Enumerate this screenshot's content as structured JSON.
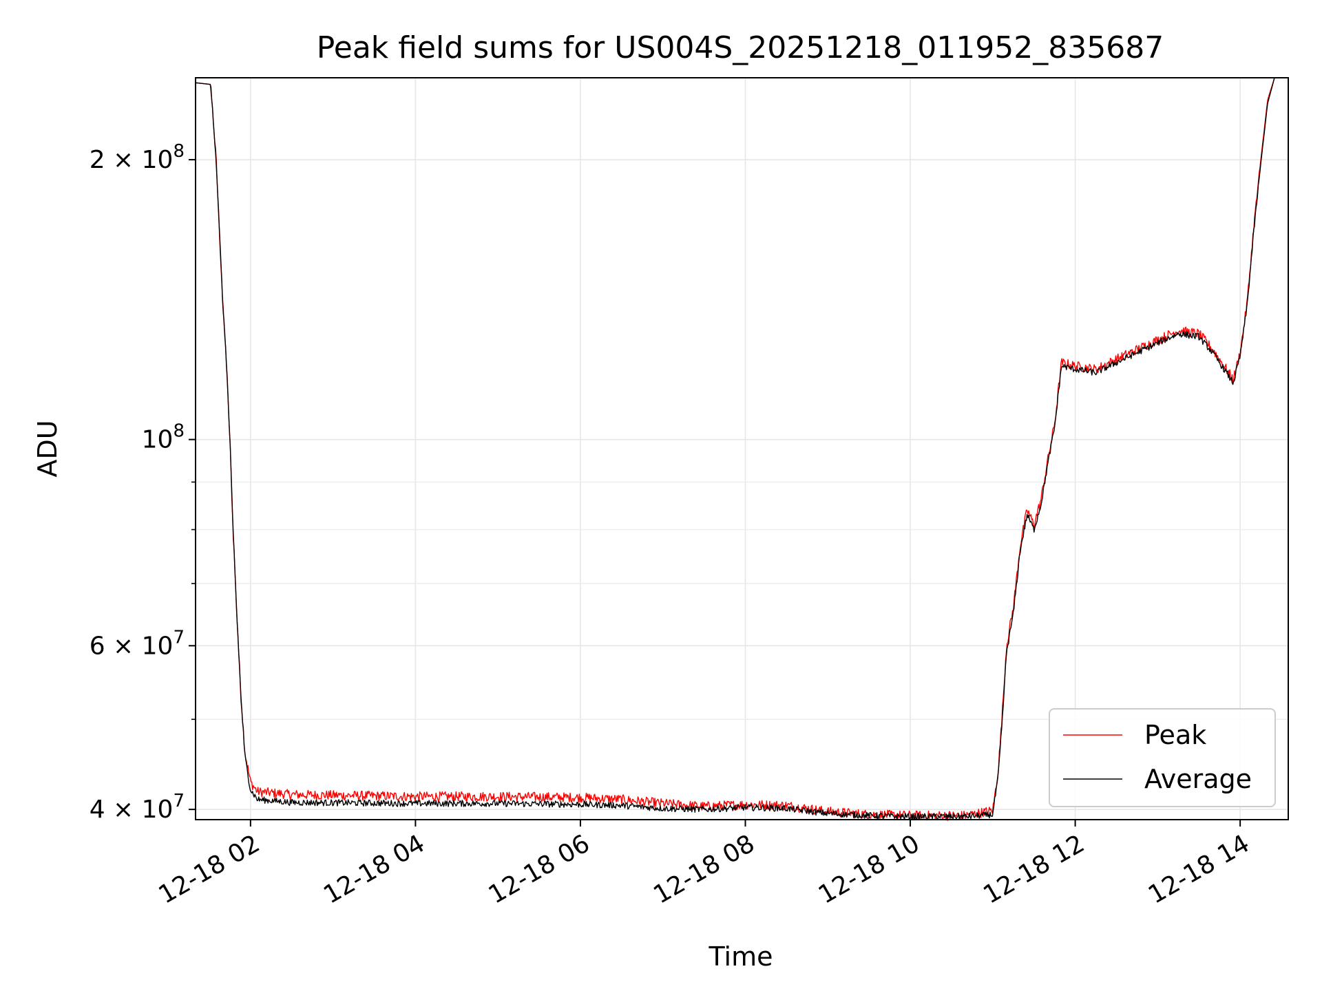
{
  "chart_data": {
    "type": "line",
    "title": "Peak field sums for US004S_20251218_011952_835687",
    "xlabel": "Time",
    "ylabel": "ADU",
    "xlim": [
      "2025-12-18 01:20",
      "2025-12-18 14:35"
    ],
    "ylim": [
      39000000,
      245000000
    ],
    "yscale": "log",
    "grid": true,
    "legend_position": "lower-right",
    "x_ticks": [
      "12-18 02",
      "12-18 04",
      "12-18 06",
      "12-18 08",
      "12-18 10",
      "12-18 12",
      "12-18 14"
    ],
    "x_tick_values": [
      "2025-12-18 02:00",
      "2025-12-18 04:00",
      "2025-12-18 06:00",
      "2025-12-18 08:00",
      "2025-12-18 10:00",
      "2025-12-18 12:00",
      "2025-12-18 14:00"
    ],
    "y_ticks": [
      {
        "value": 200000000,
        "mantissa": "2",
        "exponent": "8"
      },
      {
        "value": 100000000,
        "mantissa": "",
        "exponent": "8"
      },
      {
        "value": 60000000,
        "mantissa": "6",
        "exponent": "7"
      },
      {
        "value": 40000000,
        "mantissa": "4",
        "exponent": "7"
      }
    ],
    "y_minor_ticks": [
      50000000,
      70000000,
      80000000,
      90000000,
      300000000
    ],
    "series": [
      {
        "name": "Peak",
        "color": "#ff0000",
        "noise": 0.012,
        "points": [
          [
            "2025-12-18 01:20",
            242000000
          ],
          [
            "2025-12-18 01:31",
            241000000
          ],
          [
            "2025-12-18 01:35",
            200000000
          ],
          [
            "2025-12-18 01:38",
            160000000
          ],
          [
            "2025-12-18 01:40",
            138000000
          ],
          [
            "2025-12-18 01:42",
            125000000
          ],
          [
            "2025-12-18 01:45",
            100000000
          ],
          [
            "2025-12-18 01:47",
            82000000
          ],
          [
            "2025-12-18 01:50",
            65000000
          ],
          [
            "2025-12-18 01:53",
            53000000
          ],
          [
            "2025-12-18 01:56",
            46000000
          ],
          [
            "2025-12-18 02:00",
            42800000
          ],
          [
            "2025-12-18 02:05",
            41800000
          ],
          [
            "2025-12-18 02:30",
            41500000
          ],
          [
            "2025-12-18 04:00",
            41300000
          ],
          [
            "2025-12-18 05:00",
            41300000
          ],
          [
            "2025-12-18 06:00",
            41200000
          ],
          [
            "2025-12-18 06:30",
            41000000
          ],
          [
            "2025-12-18 07:00",
            40600000
          ],
          [
            "2025-12-18 07:30",
            40300000
          ],
          [
            "2025-12-18 08:00",
            40500000
          ],
          [
            "2025-12-18 08:30",
            40400000
          ],
          [
            "2025-12-18 09:00",
            39800000
          ],
          [
            "2025-12-18 09:30",
            39500000
          ],
          [
            "2025-12-18 10:00",
            39400000
          ],
          [
            "2025-12-18 10:40",
            39400000
          ],
          [
            "2025-12-18 11:00",
            39900000
          ],
          [
            "2025-12-18 11:04",
            44000000
          ],
          [
            "2025-12-18 11:07",
            51000000
          ],
          [
            "2025-12-18 11:10",
            60000000
          ],
          [
            "2025-12-18 11:15",
            66000000
          ],
          [
            "2025-12-18 11:20",
            77000000
          ],
          [
            "2025-12-18 11:25",
            84000000
          ],
          [
            "2025-12-18 11:30",
            81000000
          ],
          [
            "2025-12-18 11:35",
            86000000
          ],
          [
            "2025-12-18 11:40",
            95000000
          ],
          [
            "2025-12-18 11:45",
            104000000
          ],
          [
            "2025-12-18 11:50",
            121000000
          ],
          [
            "2025-12-18 12:00",
            120000000
          ],
          [
            "2025-12-18 12:15",
            119000000
          ],
          [
            "2025-12-18 12:30",
            122000000
          ],
          [
            "2025-12-18 12:45",
            125000000
          ],
          [
            "2025-12-18 13:00",
            128000000
          ],
          [
            "2025-12-18 13:15",
            131000000
          ],
          [
            "2025-12-18 13:30",
            130000000
          ],
          [
            "2025-12-18 13:40",
            125000000
          ],
          [
            "2025-12-18 13:50",
            119000000
          ],
          [
            "2025-12-18 13:55",
            116000000
          ],
          [
            "2025-12-18 14:00",
            124000000
          ],
          [
            "2025-12-18 14:05",
            140000000
          ],
          [
            "2025-12-18 14:10",
            170000000
          ],
          [
            "2025-12-18 14:15",
            200000000
          ],
          [
            "2025-12-18 14:20",
            232000000
          ],
          [
            "2025-12-18 14:25",
            245000000
          ]
        ]
      },
      {
        "name": "Average",
        "color": "#000000",
        "noise": 0.008,
        "points": [
          [
            "2025-12-18 01:20",
            242000000
          ],
          [
            "2025-12-18 01:31",
            241000000
          ],
          [
            "2025-12-18 01:35",
            200000000
          ],
          [
            "2025-12-18 01:38",
            160000000
          ],
          [
            "2025-12-18 01:40",
            138000000
          ],
          [
            "2025-12-18 01:42",
            125000000
          ],
          [
            "2025-12-18 01:45",
            100000000
          ],
          [
            "2025-12-18 01:47",
            82000000
          ],
          [
            "2025-12-18 01:50",
            65000000
          ],
          [
            "2025-12-18 01:53",
            53000000
          ],
          [
            "2025-12-18 01:56",
            45500000
          ],
          [
            "2025-12-18 02:00",
            42000000
          ],
          [
            "2025-12-18 02:05",
            41000000
          ],
          [
            "2025-12-18 02:30",
            40700000
          ],
          [
            "2025-12-18 04:00",
            40600000
          ],
          [
            "2025-12-18 05:00",
            40600000
          ],
          [
            "2025-12-18 06:00",
            40500000
          ],
          [
            "2025-12-18 06:30",
            40400000
          ],
          [
            "2025-12-18 07:00",
            40100000
          ],
          [
            "2025-12-18 07:30",
            40000000
          ],
          [
            "2025-12-18 08:00",
            40200000
          ],
          [
            "2025-12-18 08:30",
            40100000
          ],
          [
            "2025-12-18 09:00",
            39600000
          ],
          [
            "2025-12-18 09:30",
            39400000
          ],
          [
            "2025-12-18 10:00",
            39300000
          ],
          [
            "2025-12-18 10:40",
            39300000
          ],
          [
            "2025-12-18 11:00",
            39500000
          ],
          [
            "2025-12-18 11:04",
            43500000
          ],
          [
            "2025-12-18 11:07",
            50000000
          ],
          [
            "2025-12-18 11:10",
            59000000
          ],
          [
            "2025-12-18 11:15",
            65000000
          ],
          [
            "2025-12-18 11:20",
            76000000
          ],
          [
            "2025-12-18 11:25",
            83000000
          ],
          [
            "2025-12-18 11:30",
            80000000
          ],
          [
            "2025-12-18 11:35",
            85000000
          ],
          [
            "2025-12-18 11:40",
            94000000
          ],
          [
            "2025-12-18 11:45",
            103000000
          ],
          [
            "2025-12-18 11:50",
            120000000
          ],
          [
            "2025-12-18 12:00",
            119000000
          ],
          [
            "2025-12-18 12:15",
            118000000
          ],
          [
            "2025-12-18 12:30",
            121000000
          ],
          [
            "2025-12-18 12:45",
            124000000
          ],
          [
            "2025-12-18 13:00",
            127000000
          ],
          [
            "2025-12-18 13:15",
            130000000
          ],
          [
            "2025-12-18 13:30",
            129000000
          ],
          [
            "2025-12-18 13:40",
            124000000
          ],
          [
            "2025-12-18 13:50",
            118000000
          ],
          [
            "2025-12-18 13:55",
            115000000
          ],
          [
            "2025-12-18 14:00",
            123000000
          ],
          [
            "2025-12-18 14:05",
            139000000
          ],
          [
            "2025-12-18 14:10",
            168000000
          ],
          [
            "2025-12-18 14:15",
            198000000
          ],
          [
            "2025-12-18 14:20",
            230000000
          ],
          [
            "2025-12-18 14:25",
            245000000
          ]
        ]
      }
    ]
  }
}
